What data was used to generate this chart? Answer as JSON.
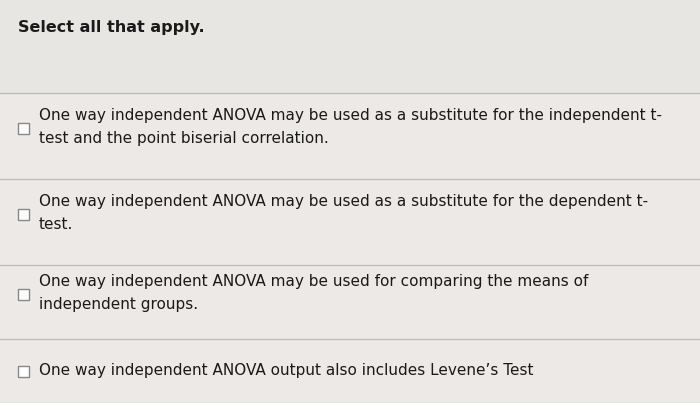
{
  "title": "Select all that apply.",
  "background_color": "#e8e6e3",
  "row_bg_color": "#ece9e6",
  "line_color": "#bbbbbb",
  "text_color": "#1a1a1a",
  "title_fontsize": 11.5,
  "option_fontsize": 11.0,
  "figwidth": 7.0,
  "figheight": 4.03,
  "dpi": 100,
  "options": [
    "One way independent ANOVA may be used as a substitute for the independent t-\ntest and the point biserial correlation.",
    "One way independent ANOVA may be used as a substitute for the dependent t-\ntest.",
    "One way independent ANOVA may be used for comparing the means of\nindependent groups.",
    "One way independent ANOVA output also includes Levene’s Test"
  ],
  "checkbox_color": "#888888",
  "checkbox_fill": "#ffffff"
}
